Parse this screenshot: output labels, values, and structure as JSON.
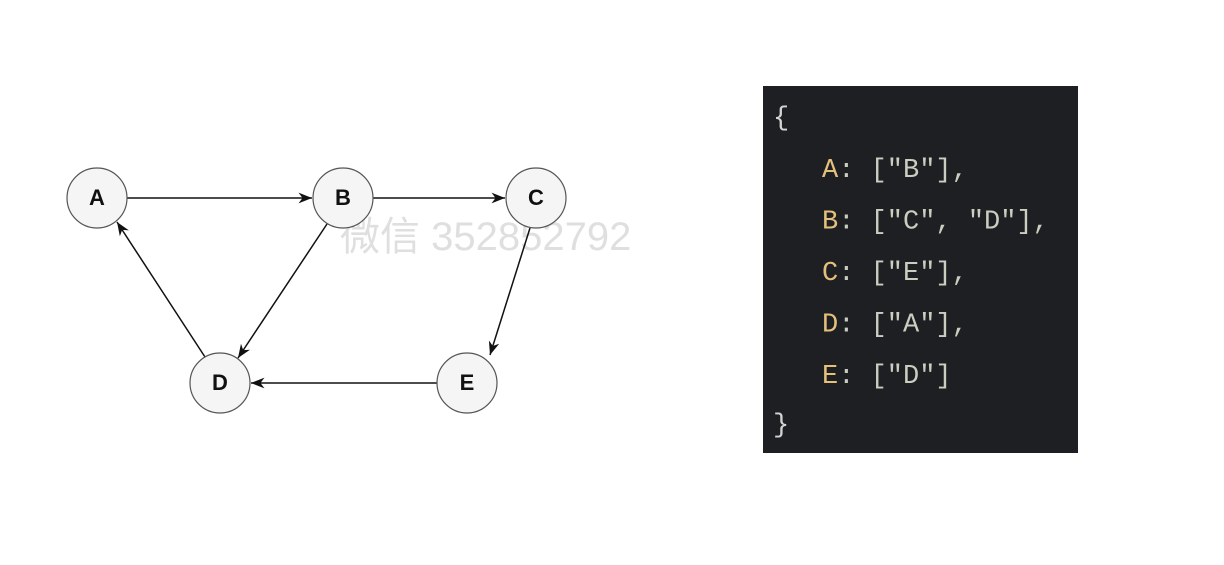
{
  "graph": {
    "nodes": [
      {
        "label": "A"
      },
      {
        "label": "B"
      },
      {
        "label": "C"
      },
      {
        "label": "D"
      },
      {
        "label": "E"
      }
    ]
  },
  "code": {
    "open": "{",
    "entries": [
      {
        "key": "A",
        "rest": ": [″B″],"
      },
      {
        "key": "B",
        "rest": ": [″C″, ″D″],"
      },
      {
        "key": "C",
        "rest": ": [″E″],"
      },
      {
        "key": "D",
        "rest": ": [″A″],"
      },
      {
        "key": "E",
        "rest": ": [″D″]"
      }
    ],
    "close": "}"
  },
  "watermark": "微信 352852792"
}
